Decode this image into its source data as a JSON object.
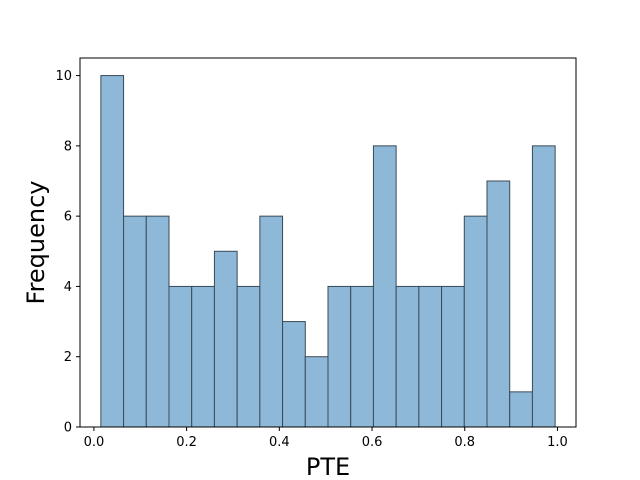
{
  "chart_data": {
    "type": "bar",
    "title": "",
    "xlabel": "PTE",
    "ylabel": "Frequency",
    "xlim": [
      -0.03,
      1.04
    ],
    "ylim": [
      0,
      10.5
    ],
    "bin_edges": [
      0.015,
      0.064,
      0.113,
      0.162,
      0.211,
      0.26,
      0.309,
      0.358,
      0.407,
      0.456,
      0.505,
      0.554,
      0.603,
      0.652,
      0.701,
      0.75,
      0.799,
      0.848,
      0.897,
      0.946,
      0.995
    ],
    "values": [
      10,
      6,
      6,
      4,
      4,
      5,
      4,
      6,
      3,
      2,
      4,
      4,
      8,
      4,
      4,
      4,
      6,
      7,
      1,
      8
    ],
    "x_ticks": [
      0.0,
      0.2,
      0.4,
      0.6,
      0.8,
      1.0
    ],
    "x_tick_labels": [
      "0.0",
      "0.2",
      "0.4",
      "0.6",
      "0.8",
      "1.0"
    ],
    "y_ticks": [
      0,
      2,
      4,
      6,
      8,
      10
    ],
    "y_tick_labels": [
      "0",
      "2",
      "4",
      "6",
      "8",
      "10"
    ],
    "grid": false,
    "legend": "none",
    "bar_color": "#8db8d8",
    "bar_edge_color": "#3a4a56"
  }
}
